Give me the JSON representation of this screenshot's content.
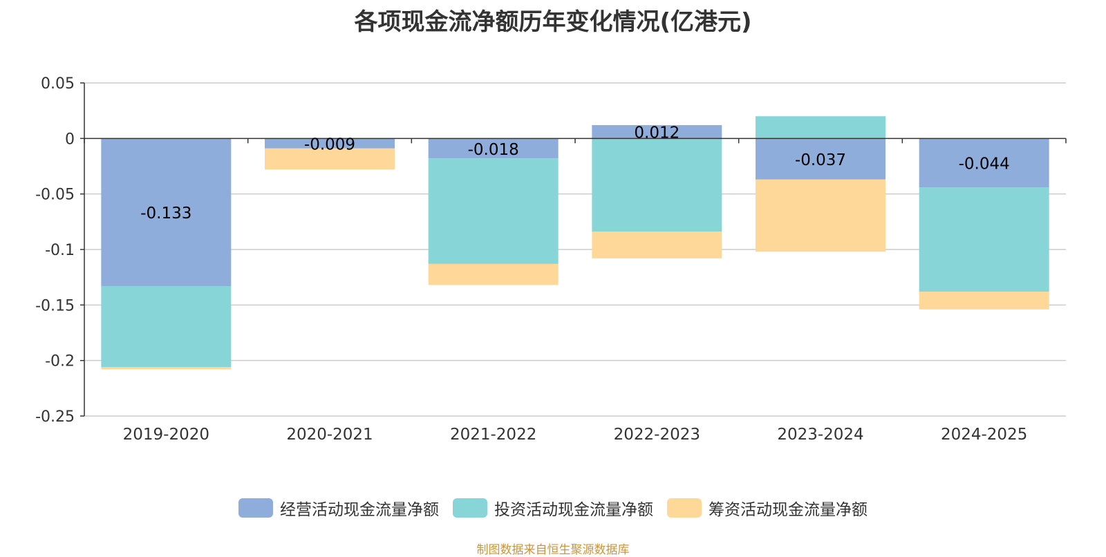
{
  "title": "各项现金流净额历年变化情况(亿港元)",
  "source": "制图数据来自恒生聚源数据库",
  "colors": {
    "operating": "#8eaddb",
    "investing": "#88d5d8",
    "financing": "#fdd898",
    "axis": "#333333",
    "grid": "#cccccc"
  },
  "legend": [
    {
      "label": "经营活动现金流量净额",
      "color": "#8eaddb"
    },
    {
      "label": "投资活动现金流量净额",
      "color": "#88d5d8"
    },
    {
      "label": "筹资活动现金流量净额",
      "color": "#fdd898"
    }
  ],
  "chart_data": {
    "type": "bar",
    "stacked": true,
    "title": "各项现金流净额历年变化情况(亿港元)",
    "xlabel": "",
    "ylabel": "",
    "ylim": [
      -0.25,
      0.05
    ],
    "yticks": [
      "0.05",
      "0",
      "-0.05",
      "-0.1",
      "-0.15",
      "-0.2",
      "-0.25"
    ],
    "ytick_values": [
      0.05,
      0,
      -0.05,
      -0.1,
      -0.15,
      -0.2,
      -0.25
    ],
    "grid": true,
    "legend_position": "bottom",
    "categories": [
      "2019-2020",
      "2020-2021",
      "2021-2022",
      "2022-2023",
      "2023-2024",
      "2024-2025"
    ],
    "series": [
      {
        "name": "经营活动现金流量净额",
        "values": [
          -0.133,
          -0.009,
          -0.018,
          0.012,
          -0.037,
          -0.044
        ],
        "labels": [
          "-0.133",
          "-0.009",
          "-0.018",
          "0.012",
          "-0.037",
          "-0.044"
        ]
      },
      {
        "name": "投资活动现金流量净额",
        "values": [
          -0.073,
          0,
          -0.095,
          -0.084,
          0.02,
          -0.094
        ]
      },
      {
        "name": "筹资活动现金流量净额",
        "values": [
          -0.002,
          -0.019,
          -0.019,
          -0.024,
          -0.065,
          -0.016
        ]
      }
    ]
  }
}
